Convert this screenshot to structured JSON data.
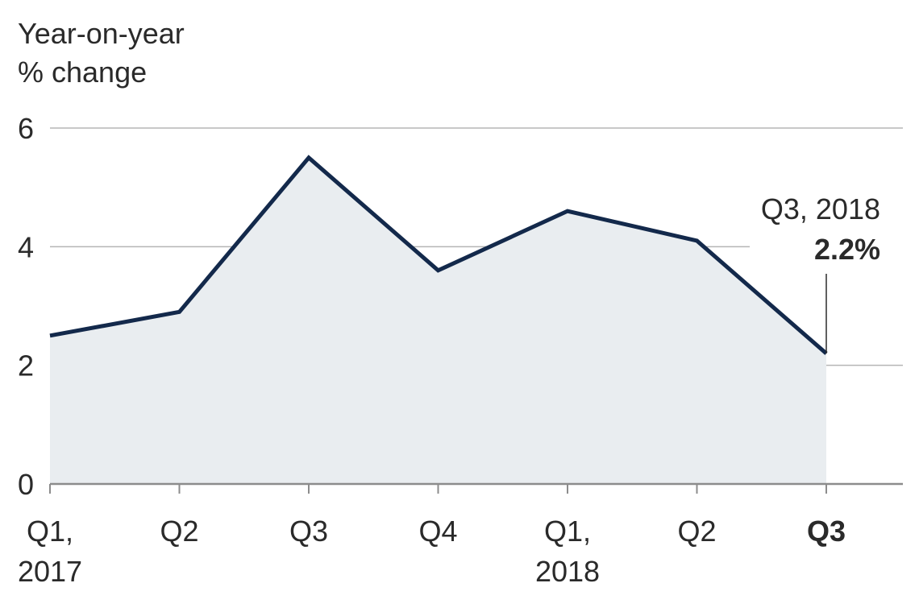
{
  "chart_data": {
    "type": "area",
    "ylabel_lines": [
      "Year-on-year",
      "% change"
    ],
    "ylim": [
      0,
      6
    ],
    "yticks": [
      0,
      2,
      4,
      6
    ],
    "categories": [
      [
        "Q1,",
        "2017"
      ],
      [
        "Q2"
      ],
      [
        "Q3"
      ],
      [
        "Q4"
      ],
      [
        "Q1,",
        "2018"
      ],
      [
        "Q2"
      ],
      [
        "Q3"
      ]
    ],
    "values": [
      2.5,
      2.9,
      5.5,
      3.6,
      4.6,
      4.1,
      2.2
    ],
    "highlight_category_index": 6,
    "annotation": {
      "label": "Q3, 2018",
      "value": "2.2%"
    },
    "colors": {
      "line": "#13294b",
      "fill": "#e9edf0",
      "grid": "#b5b5b5",
      "axis": "#8c8c8c",
      "text": "#2a2a2a"
    },
    "grid": true
  }
}
